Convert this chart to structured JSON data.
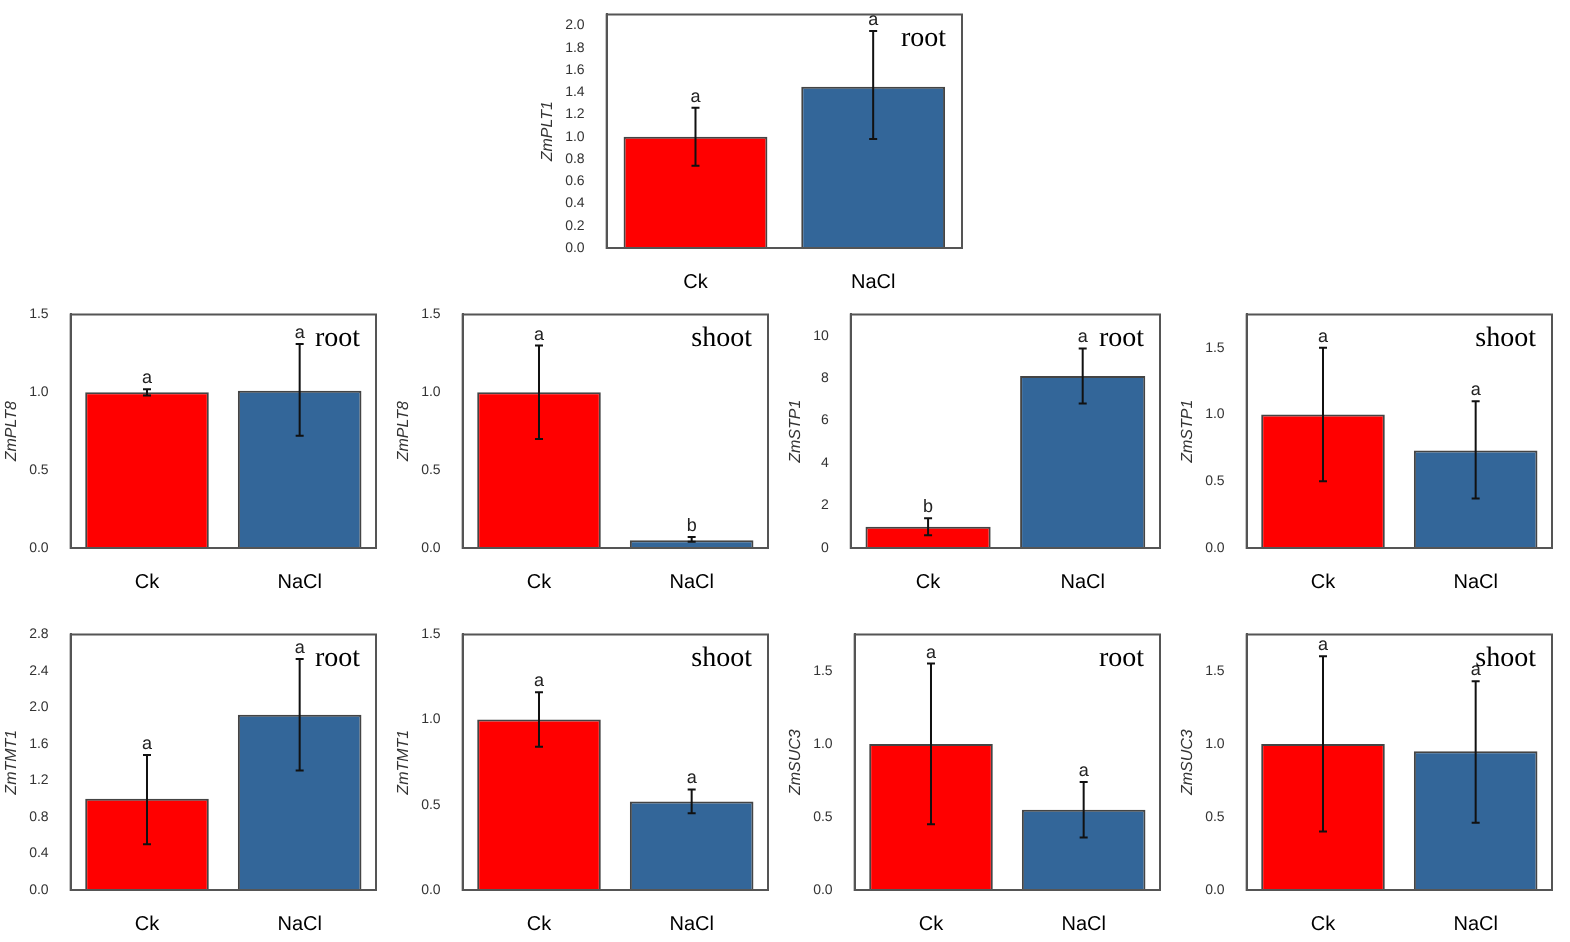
{
  "chart_data": [
    {
      "type": "bar",
      "categories": [
        "Ck",
        "NaCl"
      ],
      "values": [
        1.0,
        1.45
      ],
      "colors": [
        "#ff0000",
        "#336699"
      ],
      "errors": [
        [
          0.74,
          1.26
        ],
        [
          0.98,
          1.95
        ]
      ],
      "ylabel": "ZmPLT1",
      "ylim": [
        0,
        2.1
      ],
      "yticks": [
        {
          "value": 0,
          "label": "0.0"
        },
        {
          "value": 0.2,
          "label": "0.2"
        },
        {
          "value": 0.4,
          "label": "0.4"
        },
        {
          "value": 0.6,
          "label": "0.6"
        },
        {
          "value": 0.8,
          "label": "0.8"
        },
        {
          "value": 1,
          "label": "1.0"
        },
        {
          "value": 1.2,
          "label": "1.2"
        },
        {
          "value": 1.4,
          "label": "1.4"
        },
        {
          "value": 1.6,
          "label": "1.6"
        },
        {
          "value": 1.8,
          "label": "1.8"
        },
        {
          "value": 2,
          "label": "2.0"
        }
      ],
      "grid": false,
      "annotations": [
        "root",
        {
          "text": "a",
          "x": "Ck",
          "y": 1.26
        },
        {
          "text": "a",
          "x": "NaCl",
          "y": 1.95
        }
      ]
    },
    {
      "type": "bar",
      "categories": [
        "Ck",
        "NaCl"
      ],
      "values": [
        1.0,
        1.01
      ],
      "colors": [
        "#ff0000",
        "#336699"
      ],
      "errors": [
        [
          0.98,
          1.02
        ],
        [
          0.72,
          1.31
        ]
      ],
      "ylabel": "ZmPLT8",
      "ylim": [
        0,
        1.5
      ],
      "yticks": [
        {
          "value": 0,
          "label": "0.0"
        },
        0.5,
        {
          "value": 1,
          "label": "1.0"
        },
        1.5
      ],
      "grid": false,
      "annotations": [
        "root",
        {
          "text": "a",
          "x": "Ck",
          "y": 1.02
        },
        {
          "text": "a",
          "x": "NaCl",
          "y": 1.31
        }
      ]
    },
    {
      "type": "bar",
      "categories": [
        "Ck",
        "NaCl"
      ],
      "values": [
        1.0,
        0.05
      ],
      "colors": [
        "#ff0000",
        "#336699"
      ],
      "errors": [
        [
          0.7,
          1.3
        ],
        [
          0.04,
          0.07
        ]
      ],
      "ylabel": "ZmPLT8",
      "ylim": [
        0,
        1.5
      ],
      "yticks": [
        {
          "value": 0,
          "label": "0.0"
        },
        0.5,
        {
          "value": 1,
          "label": "1.0"
        },
        1.5
      ],
      "grid": false,
      "annotations": [
        "shoot",
        {
          "text": "a",
          "x": "Ck",
          "y": 1.3
        },
        {
          "text": "b",
          "x": "NaCl",
          "y": 0.07
        }
      ]
    },
    {
      "type": "bar",
      "categories": [
        "Ck",
        "NaCl"
      ],
      "values": [
        1.0,
        8.1
      ],
      "colors": [
        "#ff0000",
        "#336699"
      ],
      "errors": [
        [
          0.6,
          1.4
        ],
        [
          6.8,
          9.4
        ]
      ],
      "ylabel": "ZmSTP1",
      "ylim": [
        0,
        11
      ],
      "yticks": [
        0,
        2,
        4,
        6,
        8,
        10
      ],
      "grid": false,
      "annotations": [
        "root",
        {
          "text": "b",
          "x": "Ck",
          "y": 1.4
        },
        {
          "text": "a",
          "x": "NaCl",
          "y": 9.4
        }
      ]
    },
    {
      "type": "bar",
      "categories": [
        "Ck",
        "NaCl"
      ],
      "values": [
        1.0,
        0.73
      ],
      "colors": [
        "#ff0000",
        "#336699"
      ],
      "errors": [
        [
          0.5,
          1.5
        ],
        [
          0.37,
          1.1
        ]
      ],
      "ylabel": "ZmSTP1",
      "ylim": [
        0,
        1.75
      ],
      "yticks": [
        {
          "value": 0,
          "label": "0.0"
        },
        0.5,
        {
          "value": 1,
          "label": "1.0"
        },
        1.5
      ],
      "grid": false,
      "annotations": [
        "shoot",
        {
          "text": "a",
          "x": "Ck",
          "y": 1.5
        },
        {
          "text": "a",
          "x": "NaCl",
          "y": 1.1
        }
      ]
    },
    {
      "type": "bar",
      "categories": [
        "Ck",
        "NaCl"
      ],
      "values": [
        1.0,
        1.92
      ],
      "colors": [
        "#ff0000",
        "#336699"
      ],
      "errors": [
        [
          0.5,
          1.48
        ],
        [
          1.31,
          2.53
        ]
      ],
      "ylabel": "ZmTMT1",
      "ylim": [
        0,
        2.8
      ],
      "yticks": [
        {
          "value": 0,
          "label": "0.0"
        },
        0.4,
        0.8,
        1.2,
        1.6,
        {
          "value": 2,
          "label": "2.0"
        },
        2.4,
        2.8
      ],
      "grid": false,
      "annotations": [
        "root",
        {
          "text": "a",
          "x": "Ck",
          "y": 1.48
        },
        {
          "text": "a",
          "x": "NaCl",
          "y": 2.53
        }
      ]
    },
    {
      "type": "bar",
      "categories": [
        "Ck",
        "NaCl"
      ],
      "values": [
        1.0,
        0.52
      ],
      "colors": [
        "#ff0000",
        "#336699"
      ],
      "errors": [
        [
          0.84,
          1.16
        ],
        [
          0.45,
          0.59
        ]
      ],
      "ylabel": "ZmTMT1",
      "ylim": [
        0,
        1.5
      ],
      "yticks": [
        {
          "value": 0,
          "label": "0.0"
        },
        0.5,
        {
          "value": 1,
          "label": "1.0"
        },
        1.5
      ],
      "grid": false,
      "annotations": [
        "shoot",
        {
          "text": "a",
          "x": "Ck",
          "y": 1.16
        },
        {
          "text": "a",
          "x": "NaCl",
          "y": 0.59
        }
      ]
    },
    {
      "type": "bar",
      "categories": [
        "Ck",
        "NaCl"
      ],
      "values": [
        1.0,
        0.55
      ],
      "colors": [
        "#ff0000",
        "#336699"
      ],
      "errors": [
        [
          0.45,
          1.55
        ],
        [
          0.36,
          0.74
        ]
      ],
      "ylabel": "ZmSUC3",
      "ylim": [
        0,
        1.75
      ],
      "yticks": [
        {
          "value": 0,
          "label": "0.0"
        },
        0.5,
        {
          "value": 1,
          "label": "1.0"
        },
        1.5
      ],
      "grid": false,
      "annotations": [
        "root",
        {
          "text": "a",
          "x": "Ck",
          "y": 1.55
        },
        {
          "text": "a",
          "x": "NaCl",
          "y": 0.74
        }
      ]
    },
    {
      "type": "bar",
      "categories": [
        "Ck",
        "NaCl"
      ],
      "values": [
        1.0,
        0.95
      ],
      "colors": [
        "#ff0000",
        "#336699"
      ],
      "errors": [
        [
          0.4,
          1.6
        ],
        [
          0.46,
          1.43
        ]
      ],
      "ylabel": "ZmSUC3",
      "ylim": [
        0,
        1.75
      ],
      "yticks": [
        {
          "value": 0,
          "label": "0.0"
        },
        0.5,
        {
          "value": 1,
          "label": "1.0"
        },
        1.5
      ],
      "grid": false,
      "annotations": [
        "shoot",
        {
          "text": "a",
          "x": "Ck",
          "y": 1.6
        },
        {
          "text": "a",
          "x": "NaCl",
          "y": 1.43
        }
      ]
    }
  ]
}
